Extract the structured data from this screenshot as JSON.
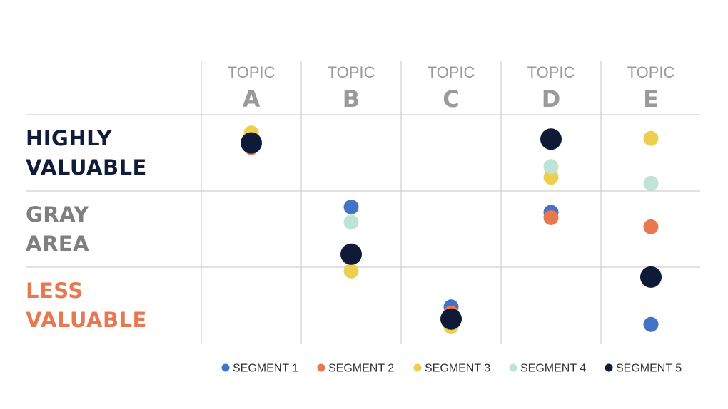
{
  "chart_data": {
    "type": "scatter",
    "columns": [
      {
        "word": "TOPIC",
        "letter": "A"
      },
      {
        "word": "TOPIC",
        "letter": "B"
      },
      {
        "word": "TOPIC",
        "letter": "C"
      },
      {
        "word": "TOPIC",
        "letter": "D"
      },
      {
        "word": "TOPIC",
        "letter": "E"
      }
    ],
    "rows": [
      {
        "lines": [
          "HIGHLY",
          "VALUABLE"
        ],
        "color": "#111c3a"
      },
      {
        "lines": [
          "GRAY",
          "AREA"
        ],
        "color": "#7f7f7f"
      },
      {
        "lines": [
          "LESS",
          "VALUABLE"
        ],
        "color": "#e8784f"
      }
    ],
    "y_scale": "value band: 0 = top of HIGHLY VALUABLE, 3 = bottom of LESS VALUABLE",
    "ylim": [
      0,
      3
    ],
    "series": [
      {
        "name": "SEGMENT 1",
        "color": "#4472c4",
        "big": false,
        "points": [
          {
            "topic": "A",
            "y": 0.38
          },
          {
            "topic": "B",
            "y": 1.21
          },
          {
            "topic": "C",
            "y": 2.52
          },
          {
            "topic": "D",
            "y": 1.28
          },
          {
            "topic": "E",
            "y": 2.75
          }
        ]
      },
      {
        "name": "SEGMENT 2",
        "color": "#e8784f",
        "big": false,
        "points": [
          {
            "topic": "A",
            "y": 0.43
          },
          {
            "topic": "B",
            "y": 1.83
          },
          {
            "topic": "C",
            "y": 2.6
          },
          {
            "topic": "D",
            "y": 1.35
          },
          {
            "topic": "E",
            "y": 1.47
          }
        ]
      },
      {
        "name": "SEGMENT 3",
        "color": "#eccf4f",
        "big": false,
        "points": [
          {
            "topic": "A",
            "y": 0.24
          },
          {
            "topic": "B",
            "y": 2.05
          },
          {
            "topic": "C",
            "y": 2.78
          },
          {
            "topic": "D",
            "y": 0.82
          },
          {
            "topic": "E",
            "y": 0.31
          }
        ]
      },
      {
        "name": "SEGMENT 4",
        "color": "#bfe3d6",
        "big": false,
        "points": [
          {
            "topic": "A",
            "y": 0.34
          },
          {
            "topic": "B",
            "y": 1.41
          },
          {
            "topic": "C",
            "y": 2.67
          },
          {
            "topic": "D",
            "y": 0.68
          },
          {
            "topic": "E",
            "y": 0.9
          }
        ]
      },
      {
        "name": "SEGMENT 5",
        "color": "#0f1a36",
        "big": true,
        "points": [
          {
            "topic": "A",
            "y": 0.37
          },
          {
            "topic": "B",
            "y": 1.83
          },
          {
            "topic": "C",
            "y": 2.68
          },
          {
            "topic": "D",
            "y": 0.32
          },
          {
            "topic": "E",
            "y": 2.13
          }
        ]
      }
    ],
    "grid": true,
    "legend": "bottom"
  }
}
